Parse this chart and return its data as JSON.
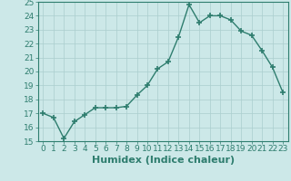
{
  "x": [
    0,
    1,
    2,
    3,
    4,
    5,
    6,
    7,
    8,
    9,
    10,
    11,
    12,
    13,
    14,
    15,
    16,
    17,
    18,
    19,
    20,
    21,
    22,
    23
  ],
  "y": [
    17.0,
    16.7,
    15.2,
    16.4,
    16.9,
    17.4,
    17.4,
    17.4,
    17.5,
    18.3,
    19.0,
    20.2,
    20.7,
    22.5,
    24.8,
    23.5,
    24.0,
    24.0,
    23.7,
    22.9,
    22.6,
    21.5,
    20.3,
    18.5
  ],
  "xlabel": "Humidex (Indice chaleur)",
  "ylim": [
    15,
    25
  ],
  "xlim": [
    -0.5,
    23.5
  ],
  "yticks": [
    15,
    16,
    17,
    18,
    19,
    20,
    21,
    22,
    23,
    24,
    25
  ],
  "xticks": [
    0,
    1,
    2,
    3,
    4,
    5,
    6,
    7,
    8,
    9,
    10,
    11,
    12,
    13,
    14,
    15,
    16,
    17,
    18,
    19,
    20,
    21,
    22,
    23
  ],
  "line_color": "#2e7d6e",
  "marker": "+",
  "marker_size": 4,
  "marker_lw": 1.2,
  "line_width": 1.0,
  "bg_color": "#cce8e8",
  "grid_color": "#aacece",
  "xlabel_fontsize": 8,
  "tick_fontsize": 6.5
}
